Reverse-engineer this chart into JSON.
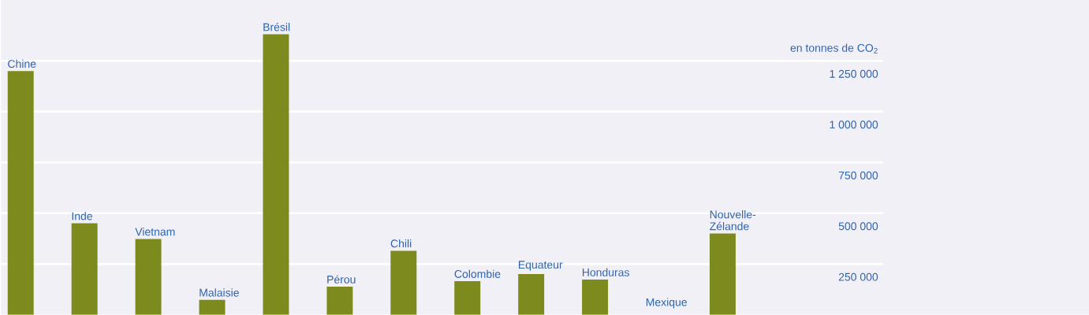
{
  "chart_data": {
    "type": "bar",
    "ylabel": "en tonnes de CO$_{2}$",
    "categories": [
      "Chine",
      "Inde",
      "Vietnam",
      "Malaisie",
      "Brésil",
      "Pérou",
      "Chili",
      "Colombie",
      "Equateur",
      "Honduras",
      "Mexique",
      "Nouvelle-Zélande"
    ],
    "values": [
      1200000,
      450000,
      373000,
      73000,
      1381000,
      138000,
      315000,
      165000,
      200000,
      173000,
      null,
      400000
    ],
    "color": "#7d8a1e",
    "ylim": [
      0,
      1550000
    ],
    "yticks": [
      {
        "value": 250000,
        "label": "250 000"
      },
      {
        "value": 500000,
        "label": "500 000"
      },
      {
        "value": 750000,
        "label": "750 000"
      },
      {
        "value": 1000000,
        "label": "1 000 000"
      },
      {
        "value": 1250000,
        "label": "1 250 000"
      }
    ],
    "grid": "y"
  }
}
